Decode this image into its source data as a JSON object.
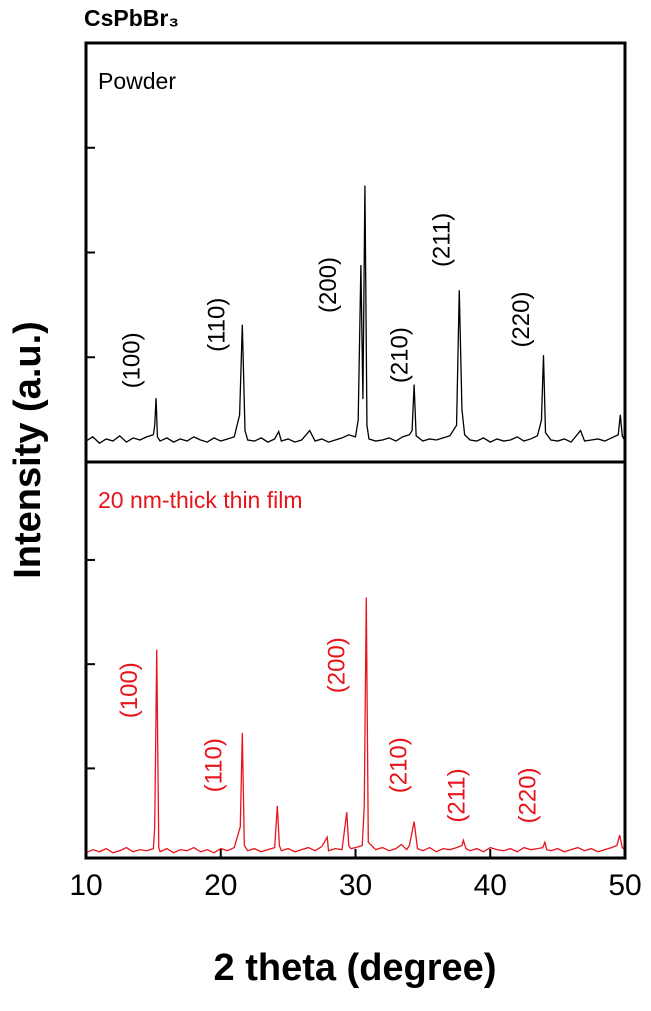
{
  "chart_data": [
    {
      "type": "line",
      "title": "CsPbBr₃",
      "ylabel": "Intensity (a.u.)",
      "xlim": [
        10,
        50
      ],
      "ylim": [
        0,
        4
      ],
      "yticks": [
        1,
        2,
        3
      ],
      "x": [
        10,
        10.5,
        11,
        11.5,
        12,
        12.5,
        13,
        13.5,
        14,
        14.5,
        15,
        15.1,
        15.2,
        15.3,
        15.5,
        16,
        16.5,
        17,
        17.5,
        18,
        18.5,
        19,
        19.5,
        20,
        20.5,
        21,
        21.4,
        21.6,
        21.8,
        22,
        22.5,
        23,
        23.5,
        24,
        24.3,
        24.5,
        25,
        25.5,
        26,
        26.6,
        27,
        27.5,
        28,
        28.5,
        29,
        29.5,
        30,
        30.2,
        30.4,
        30.55,
        30.7,
        30.85,
        31,
        31.5,
        32,
        32.5,
        33,
        33.5,
        34,
        34.2,
        34.35,
        34.5,
        35,
        35.5,
        36,
        36.5,
        37,
        37.5,
        37.7,
        37.9,
        38.1,
        38.5,
        39,
        39.5,
        40,
        40.5,
        41,
        41.5,
        42,
        42.5,
        43,
        43.5,
        43.8,
        43.95,
        44.1,
        44.5,
        45,
        45.5,
        46,
        46.7,
        47,
        47.5,
        48,
        48.5,
        49,
        49.5,
        49.65,
        49.8,
        50
      ],
      "series": [
        {
          "name": "Powder",
          "color": "#000000",
          "values": [
            0.2,
            0.24,
            0.18,
            0.22,
            0.2,
            0.25,
            0.19,
            0.23,
            0.21,
            0.24,
            0.26,
            0.35,
            0.61,
            0.24,
            0.2,
            0.23,
            0.19,
            0.22,
            0.2,
            0.24,
            0.21,
            0.19,
            0.23,
            0.2,
            0.22,
            0.24,
            0.45,
            1.31,
            0.3,
            0.21,
            0.2,
            0.23,
            0.19,
            0.22,
            0.29,
            0.2,
            0.22,
            0.19,
            0.21,
            0.3,
            0.2,
            0.22,
            0.19,
            0.21,
            0.23,
            0.26,
            0.24,
            0.4,
            1.88,
            0.6,
            2.64,
            0.35,
            0.22,
            0.2,
            0.21,
            0.23,
            0.2,
            0.24,
            0.26,
            0.3,
            0.74,
            0.25,
            0.2,
            0.22,
            0.21,
            0.23,
            0.25,
            0.35,
            1.64,
            0.5,
            0.26,
            0.21,
            0.2,
            0.23,
            0.19,
            0.22,
            0.2,
            0.21,
            0.24,
            0.2,
            0.22,
            0.25,
            0.4,
            1.02,
            0.28,
            0.21,
            0.2,
            0.22,
            0.19,
            0.3,
            0.2,
            0.21,
            0.22,
            0.2,
            0.23,
            0.26,
            0.45,
            0.25,
            0.2
          ]
        }
      ],
      "annotations": [
        "(100)",
        "(110)",
        "(200)",
        "(210)",
        "(211)",
        "(220)"
      ]
    },
    {
      "type": "line",
      "xlabel": "2 theta (degree)",
      "xlim": [
        10,
        50
      ],
      "xticks": [
        10,
        20,
        30,
        40,
        50
      ],
      "ylim": [
        0,
        3.8
      ],
      "yticks": [
        0.86,
        1.86,
        2.86
      ],
      "x": [
        10,
        10.5,
        11,
        11.5,
        12,
        12.5,
        13,
        13.5,
        14,
        14.5,
        15,
        15.1,
        15.25,
        15.4,
        15.5,
        16,
        16.5,
        17,
        17.5,
        18,
        18.5,
        19,
        19.5,
        20,
        20.5,
        21,
        21.45,
        21.6,
        21.75,
        22,
        22.5,
        23,
        23.5,
        24,
        24.2,
        24.35,
        24.5,
        25,
        25.5,
        26,
        26.5,
        27,
        27.5,
        27.9,
        28,
        28.5,
        29,
        29.35,
        29.5,
        29.65,
        30,
        30.5,
        30.65,
        30.8,
        30.95,
        31.5,
        32,
        32.5,
        33,
        33.4,
        33.8,
        34,
        34.35,
        34.6,
        35,
        35.5,
        36,
        36.5,
        37,
        37.5,
        37.9,
        38.0,
        38.2,
        38.5,
        39,
        39.5,
        40,
        40.5,
        41,
        41.5,
        42,
        42.5,
        43,
        43.5,
        43.9,
        44.05,
        44.2,
        44.5,
        45,
        45.5,
        46,
        46.5,
        47,
        47.5,
        48,
        48.5,
        49,
        49.4,
        49.6,
        49.8,
        50
      ],
      "series": [
        {
          "name": "20 nm-thick thin film",
          "color": "#e8141b",
          "values": [
            0.05,
            0.08,
            0.06,
            0.09,
            0.05,
            0.07,
            0.1,
            0.06,
            0.08,
            0.07,
            0.09,
            0.3,
            2.0,
            0.1,
            0.06,
            0.09,
            0.05,
            0.08,
            0.07,
            0.1,
            0.06,
            0.08,
            0.05,
            0.09,
            0.07,
            0.1,
            0.3,
            1.2,
            0.12,
            0.07,
            0.09,
            0.06,
            0.08,
            0.1,
            0.5,
            0.12,
            0.07,
            0.09,
            0.06,
            0.08,
            0.1,
            0.07,
            0.11,
            0.2,
            0.07,
            0.09,
            0.08,
            0.44,
            0.12,
            0.09,
            0.1,
            0.12,
            0.5,
            2.5,
            0.15,
            0.08,
            0.1,
            0.07,
            0.09,
            0.13,
            0.08,
            0.12,
            0.35,
            0.09,
            0.07,
            0.1,
            0.06,
            0.09,
            0.08,
            0.1,
            0.12,
            0.17,
            0.09,
            0.07,
            0.09,
            0.06,
            0.1,
            0.08,
            0.07,
            0.09,
            0.06,
            0.1,
            0.08,
            0.09,
            0.1,
            0.15,
            0.08,
            0.07,
            0.09,
            0.06,
            0.08,
            0.1,
            0.07,
            0.09,
            0.06,
            0.08,
            0.1,
            0.12,
            0.22,
            0.1,
            0.08
          ]
        }
      ],
      "annotations": [
        "(100)",
        "(110)",
        "(200)",
        "(210)",
        "(211)",
        "(220)"
      ]
    }
  ]
}
